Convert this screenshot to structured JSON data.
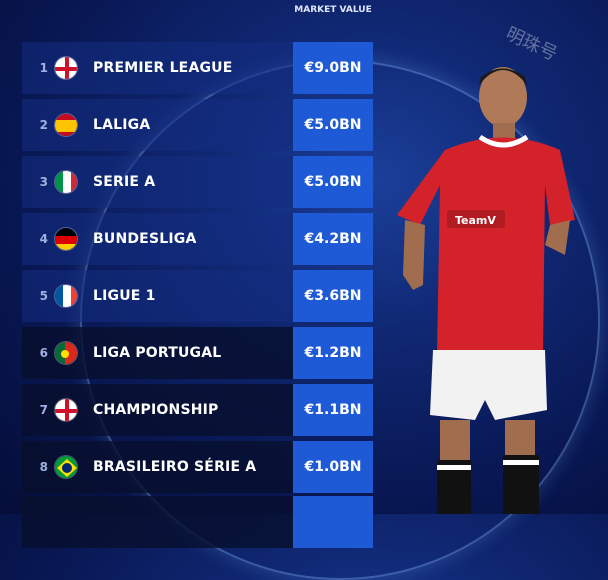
{
  "header": {
    "market_value": "MARKET VALUE"
  },
  "watermark": "明珠号",
  "leagues": [
    {
      "rank": "1",
      "name": "PREMIER LEAGUE",
      "value": "€9.0BN",
      "flag": "england"
    },
    {
      "rank": "2",
      "name": "LALIGA",
      "value": "€5.0BN",
      "flag": "spain"
    },
    {
      "rank": "3",
      "name": "SERIE A",
      "value": "€5.0BN",
      "flag": "italy"
    },
    {
      "rank": "4",
      "name": "BUNDESLIGA",
      "value": "€4.2BN",
      "flag": "germany"
    },
    {
      "rank": "5",
      "name": "LIGUE 1",
      "value": "€3.6BN",
      "flag": "france"
    },
    {
      "rank": "6",
      "name": "LIGA PORTUGAL",
      "value": "€1.2BN",
      "flag": "portugal"
    },
    {
      "rank": "7",
      "name": "CHAMPIONSHIP",
      "value": "€1.1BN",
      "flag": "england"
    },
    {
      "rank": "8",
      "name": "BRASILEIRO SÉRIE A",
      "value": "€1.0BN",
      "flag": "brazil"
    }
  ],
  "colors": {
    "value_box": "#1f5ad6",
    "row": "#14308a",
    "background": "#0a1a55"
  }
}
